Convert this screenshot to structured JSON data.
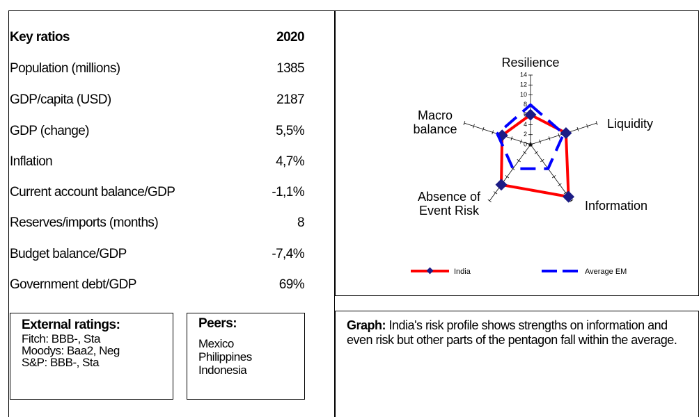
{
  "table": {
    "header": [
      "Key ratios",
      "2020"
    ],
    "rows": [
      [
        "Population (millions)",
        "1385"
      ],
      [
        "GDP/capita (USD)",
        "2187"
      ],
      [
        "GDP (change)",
        "5,5%"
      ],
      [
        "Inflation",
        "4,7%"
      ],
      [
        "Current account balance/GDP",
        "-1,1%"
      ],
      [
        "Reserves/imports (months)",
        "8"
      ],
      [
        "Budget balance/GDP",
        "-7,4%"
      ],
      [
        "Government debt/GDP",
        "69%"
      ]
    ]
  },
  "ratings": {
    "title": "External ratings:",
    "lines": [
      "Fitch: BBB-, Sta",
      "Moodys: Baa2, Neg",
      "S&P: BBB-, Sta"
    ]
  },
  "peers": {
    "title": "Peers:",
    "lines": [
      "Mexico",
      "Philippines",
      "Indonesia"
    ]
  },
  "chart_data": {
    "type": "radar",
    "categories": [
      "Resilience",
      "Liquidity",
      "Information",
      "Absence of Event Risk",
      "Macro balance"
    ],
    "series": [
      {
        "name": "India",
        "color": "#ff0000",
        "values": [
          6,
          7.5,
          13,
          10,
          6
        ]
      },
      {
        "name": "Average EM",
        "color": "#0000ff",
        "values": [
          8,
          7,
          6,
          6,
          7
        ]
      }
    ],
    "ylim": [
      0,
      14
    ],
    "yticks": [
      0,
      2,
      4,
      6,
      8,
      10,
      12,
      14
    ]
  },
  "caption": {
    "label": "Graph:",
    "text": "India's risk profile shows strengths on information and even risk but other parts of the pentagon fall within the average."
  }
}
